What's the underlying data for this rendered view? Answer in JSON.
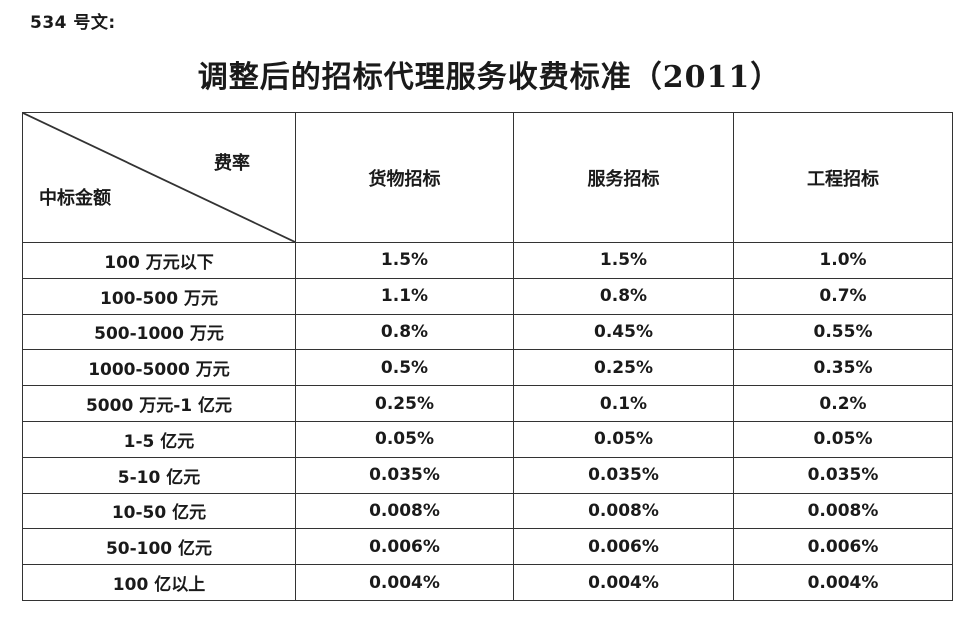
{
  "colors": {
    "background": "#ffffff",
    "text": "#1a1a1a",
    "border": "#333333"
  },
  "page": {
    "doc_number": "534 号文:",
    "title": "调整后的招标代理服务收费标准（2011）"
  },
  "table": {
    "corner": {
      "top_right_label": "费率",
      "bottom_left_label": "中标金额"
    },
    "columns": [
      "货物招标",
      "服务招标",
      "工程招标"
    ],
    "rows": [
      {
        "amount": "100 万元以下",
        "goods": "1.5%",
        "service": "1.5%",
        "engineering": "1.0%"
      },
      {
        "amount": "100-500 万元",
        "goods": "1.1%",
        "service": "0.8%",
        "engineering": "0.7%"
      },
      {
        "amount": "500-1000 万元",
        "goods": "0.8%",
        "service": "0.45%",
        "engineering": "0.55%"
      },
      {
        "amount": "1000-5000 万元",
        "goods": "0.5%",
        "service": "0.25%",
        "engineering": "0.35%"
      },
      {
        "amount": "5000 万元-1 亿元",
        "goods": "0.25%",
        "service": "0.1%",
        "engineering": "0.2%"
      },
      {
        "amount": "1-5 亿元",
        "goods": "0.05%",
        "service": "0.05%",
        "engineering": "0.05%"
      },
      {
        "amount": "5-10 亿元",
        "goods": "0.035%",
        "service": "0.035%",
        "engineering": "0.035%"
      },
      {
        "amount": "10-50 亿元",
        "goods": "0.008%",
        "service": "0.008%",
        "engineering": "0.008%"
      },
      {
        "amount": "50-100 亿元",
        "goods": "0.006%",
        "service": "0.006%",
        "engineering": "0.006%"
      },
      {
        "amount": "100 亿以上",
        "goods": "0.004%",
        "service": "0.004%",
        "engineering": "0.004%"
      }
    ]
  }
}
